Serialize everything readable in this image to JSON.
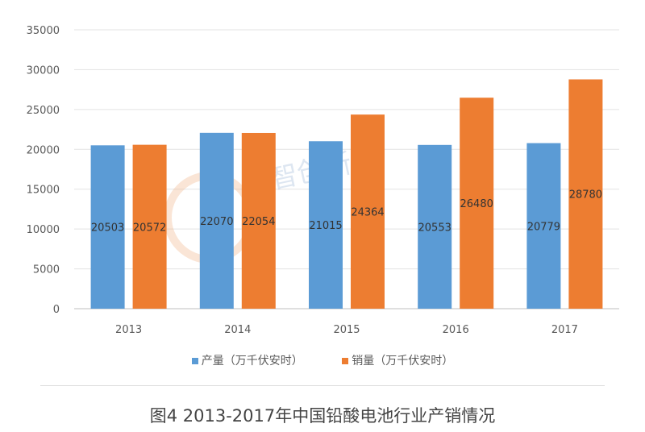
{
  "chart_data": {
    "type": "bar",
    "title": "",
    "xlabel": "",
    "ylabel": "",
    "categories": [
      "2013",
      "2014",
      "2015",
      "2016",
      "2017"
    ],
    "series": [
      {
        "name": "产量（万千伏安时）",
        "color": "#5b9bd5",
        "values": [
          20503,
          22070,
          21015,
          20553,
          20779
        ]
      },
      {
        "name": "销量（万千伏安时）",
        "color": "#ed7d31",
        "values": [
          20572,
          22054,
          24364,
          26480,
          28780
        ]
      }
    ],
    "ylim": [
      0,
      35000
    ],
    "yticks": [
      "0",
      "5000",
      "10000",
      "15000",
      "20000",
      "25000",
      "30000",
      "35000"
    ],
    "grid": true,
    "legend": "bottom",
    "data_labels": true
  },
  "caption": "图4 2013-2017年中国铅酸电池行业产销情况",
  "watermark": "金智创新 技术·品质·一"
}
